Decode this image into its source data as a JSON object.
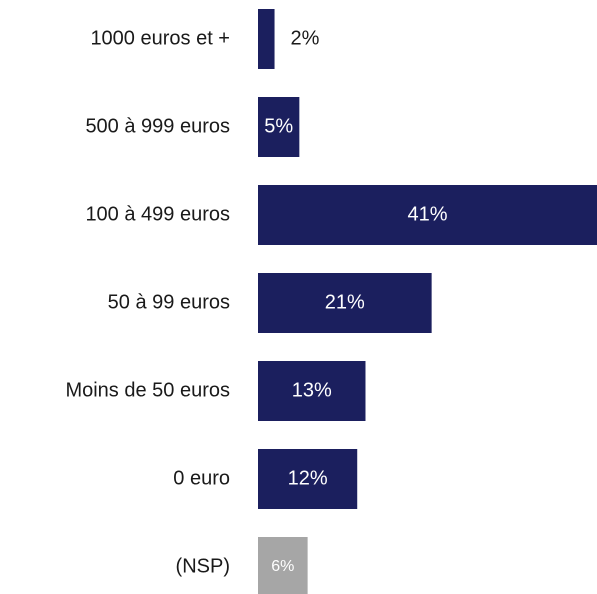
{
  "chart_data": {
    "type": "hbar",
    "categories": [
      "1000 euros et +",
      "500 à 999 euros",
      "100 à 499 euros",
      "50 à 99 euros",
      "Moins de 50 euros",
      "0 euro",
      "(NSP)"
    ],
    "values": [
      2,
      5,
      41,
      21,
      13,
      12,
      6
    ],
    "value_labels": [
      "2%",
      "5%",
      "41%",
      "21%",
      "13%",
      "12%",
      "6%"
    ],
    "colors": [
      "#1b1f5e",
      "#1b1f5e",
      "#1b1f5e",
      "#1b1f5e",
      "#1b1f5e",
      "#1b1f5e",
      "#a6a6a6"
    ]
  }
}
